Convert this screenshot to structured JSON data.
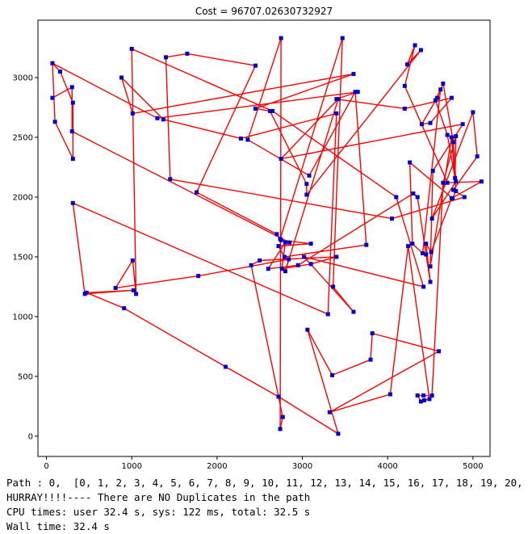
{
  "chart_data": {
    "type": "line",
    "title": "Cost = 96707.02630732927",
    "xlabel": "",
    "ylabel": "",
    "xlim": [
      -100,
      5200
    ],
    "ylim": [
      -170,
      3480
    ],
    "x_ticks": [
      0,
      1000,
      2000,
      3000,
      4000,
      5000
    ],
    "y_ticks": [
      0,
      500,
      1000,
      1500,
      2000,
      2500,
      3000
    ],
    "grid": false,
    "colors": {
      "line": "#ff0000",
      "marker": "#0000cc"
    },
    "series": [
      {
        "x": [
          70,
          160,
          310,
          310,
          100,
          70,
          1300,
          3650,
          3400,
          4200,
          4750,
          4500,
          4400,
          4580,
          4650,
          4770,
          4800,
          4520,
          5000,
          5050,
          4770,
          4900,
          4050,
          1450,
          1400,
          1650,
          2450,
          1760,
          2700,
          2750,
          3100,
          2720,
          2790,
          3750,
          3620,
          3080,
          2360,
          2750,
          2740,
          2770,
          2400,
          2500,
          3400,
          3100,
          2760,
          2800,
          2600,
          2950,
          4300,
          4350,
          4450,
          4500,
          4450,
          4510,
          4750,
          5100,
          4700,
          4200,
          4320,
          4230,
          4390,
          3050,
          3050,
          2620,
          2450,
          3600,
          1010,
          880,
          1370,
          2280,
          3400,
          3300,
          310,
          450,
          1020,
          470,
          910,
          2100,
          2720,
          3420,
          3060,
          3350,
          3800,
          3820,
          4600,
          3320,
          4030,
          4240,
          4490,
          4430,
          4390,
          4350,
          4420,
          4520,
          4650,
          4800,
          4790,
          4700,
          4560,
          4620,
          4410,
          4290,
          4260,
          4760,
          4800,
          4750,
          4500,
          4530,
          4880,
          2750,
          3420,
          2800,
          2840,
          1780,
          810,
          1010,
          1050,
          1000,
          2650,
          4100,
          4420,
          3020,
          3600,
          3360,
          3470,
          2740,
          2850,
          300,
          300,
          70
        ],
        "y": [
          3120,
          3050,
          2790,
          2320,
          2630,
          3120,
          2660,
          2880,
          2820,
          2740,
          2830,
          2620,
          2610,
          2830,
          2950,
          2460,
          2130,
          1820,
          2710,
          2340,
          2060,
          2000,
          1820,
          2150,
          3170,
          3200,
          3100,
          2040,
          1690,
          1640,
          1610,
          1590,
          1500,
          1600,
          2880,
          2180,
          2480,
          3330,
          60,
          160,
          1430,
          1470,
          1500,
          1440,
          1400,
          1620,
          1400,
          1430,
          2030,
          2000,
          1520,
          1290,
          1610,
          1540,
          1990,
          2130,
          2120,
          2930,
          3270,
          3110,
          3230,
          2020,
          2110,
          2720,
          2740,
          3030,
          2700,
          3000,
          2650,
          2490,
          2700,
          1020,
          1950,
          1190,
          1220,
          1200,
          1070,
          580,
          330,
          20,
          890,
          510,
          640,
          860,
          710,
          200,
          350,
          1590,
          310,
          300,
          290,
          340,
          340,
          340,
          2120,
          2510,
          2160,
          2520,
          2810,
          2900,
          1530,
          1610,
          2290,
          1990,
          2050,
          2500,
          1420,
          2220,
          2610,
          2320,
          2820,
          1380,
          1480,
          1340,
          1240,
          1470,
          1190,
          3240,
          2720,
          2000,
          1250,
          1500,
          1040,
          1250,
          3330,
          1650,
          1620,
          2550,
          2920,
          2830
        ]
      }
    ]
  },
  "output": {
    "path_line": "Path : 0,  [0, 1, 2, 3, 4, 5, 6, 7, 8, 9, 10, 11, 12, 13, 14, 15, 16, 17, 18, 19, 20,",
    "duplicates_line": "HURRAY!!!!---- There are NO Duplicates in the path",
    "cpu_line": "CPU times: user 32.4 s, sys: 122 ms, total: 32.5 s",
    "wall_line": "Wall time: 32.4 s"
  }
}
